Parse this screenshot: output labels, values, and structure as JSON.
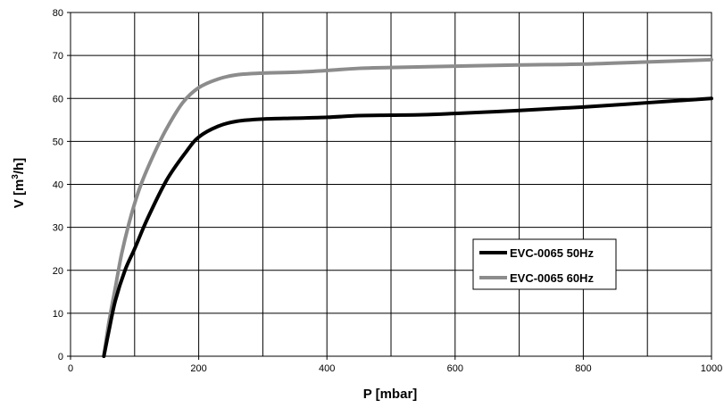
{
  "chart_data": {
    "type": "line",
    "xlabel": "P [mbar]",
    "ylabel_main": "V [m",
    "ylabel_sup": "3",
    "ylabel_tail": "/h]",
    "xlim": [
      0,
      1000
    ],
    "ylim": [
      0,
      80
    ],
    "x_ticks": [
      0,
      200,
      400,
      600,
      800,
      1000
    ],
    "x_grid_step": 100,
    "y_ticks": [
      0,
      10,
      20,
      30,
      40,
      50,
      60,
      70,
      80
    ],
    "grid": true,
    "legend_position": "lower-right",
    "series": [
      {
        "name": "EVC-0065 50Hz",
        "color": "#000000",
        "points": [
          [
            52,
            0
          ],
          [
            60,
            6
          ],
          [
            70,
            13
          ],
          [
            85,
            20
          ],
          [
            100,
            25
          ],
          [
            120,
            32
          ],
          [
            150,
            41
          ],
          [
            180,
            47.5
          ],
          [
            200,
            51
          ],
          [
            230,
            53.5
          ],
          [
            260,
            54.7
          ],
          [
            300,
            55.2
          ],
          [
            350,
            55.4
          ],
          [
            400,
            55.6
          ],
          [
            450,
            56
          ],
          [
            500,
            56.1
          ],
          [
            550,
            56.2
          ],
          [
            600,
            56.5
          ],
          [
            700,
            57.2
          ],
          [
            800,
            58
          ],
          [
            900,
            59
          ],
          [
            1000,
            60
          ]
        ]
      },
      {
        "name": "EVC-0065 60Hz",
        "color": "#8c8c8c",
        "points": [
          [
            52,
            0
          ],
          [
            60,
            8
          ],
          [
            70,
            16
          ],
          [
            80,
            24
          ],
          [
            95,
            33
          ],
          [
            110,
            40
          ],
          [
            130,
            47
          ],
          [
            150,
            53
          ],
          [
            175,
            59
          ],
          [
            200,
            62.5
          ],
          [
            230,
            64.5
          ],
          [
            260,
            65.5
          ],
          [
            300,
            65.9
          ],
          [
            350,
            66.1
          ],
          [
            400,
            66.5
          ],
          [
            450,
            67
          ],
          [
            500,
            67.2
          ],
          [
            600,
            67.5
          ],
          [
            700,
            67.8
          ],
          [
            800,
            68
          ],
          [
            900,
            68.5
          ],
          [
            1000,
            69
          ]
        ]
      }
    ]
  }
}
